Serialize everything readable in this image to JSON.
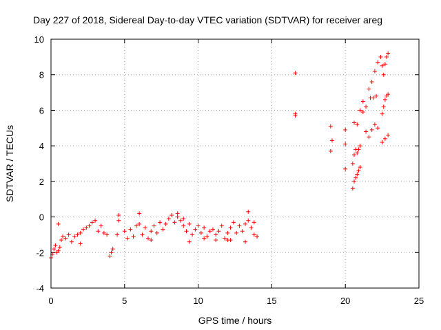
{
  "chart_data": {
    "type": "scatter",
    "title": "Day 227 of 2018, Sidereal Day-to-day VTEC variation (SDTVAR) for receiver areg",
    "xlabel": "GPS time / hours",
    "ylabel": "SDTVAR / TECUs",
    "xlim": [
      0,
      25
    ],
    "ylim": [
      -4,
      10
    ],
    "xticks": [
      0,
      5,
      10,
      15,
      20,
      25
    ],
    "yticks": [
      -4,
      -2,
      0,
      2,
      4,
      6,
      8,
      10
    ],
    "grid": true,
    "marker": "+",
    "color": "#ff0000",
    "series": [
      {
        "name": "SDTVAR",
        "x": [
          0.0,
          0.1,
          0.2,
          0.3,
          0.4,
          0.5,
          0.6,
          0.7,
          0.8,
          1.0,
          1.2,
          1.4,
          1.6,
          1.8,
          2.0,
          2.2,
          2.4,
          2.6,
          2.8,
          3.0,
          3.2,
          3.4,
          3.6,
          3.8,
          4.0,
          4.1,
          4.2,
          4.5,
          4.6,
          5.0,
          5.2,
          5.4,
          5.6,
          5.8,
          6.0,
          6.2,
          6.4,
          6.6,
          6.8,
          7.0,
          7.2,
          7.4,
          7.6,
          7.8,
          8.0,
          8.2,
          8.4,
          8.6,
          8.8,
          9.0,
          9.2,
          9.4,
          9.6,
          9.8,
          10.0,
          10.2,
          10.4,
          10.6,
          10.8,
          11.0,
          11.2,
          11.4,
          11.6,
          11.8,
          12.0,
          12.2,
          12.4,
          12.6,
          12.8,
          13.0,
          13.2,
          13.4,
          13.6,
          13.8,
          14.0,
          0.5,
          4.6,
          6.0,
          8.6,
          9.0,
          12.0,
          13.4,
          13.8,
          2.0,
          6.8,
          9.4,
          10.4,
          11.2,
          12.2,
          13.2,
          16.6,
          16.6,
          16.6,
          19.0,
          19.1,
          19.0,
          20.0,
          20.0,
          20.0,
          20.5,
          20.6,
          20.7,
          20.8,
          20.9,
          21.0,
          20.5,
          20.6,
          20.7,
          20.8,
          20.9,
          21.0,
          20.6,
          20.8,
          21.0,
          21.2,
          21.4,
          21.2,
          21.4,
          21.6,
          21.8,
          22.0,
          22.2,
          21.6,
          21.8,
          22.0,
          22.2,
          22.4,
          22.5,
          22.6,
          22.7,
          22.8,
          22.9,
          22.5,
          22.6,
          22.7,
          22.8,
          22.9,
          22.5,
          22.7,
          22.9,
          21.7,
          21.9,
          22.1
        ],
        "y": [
          -2.3,
          -2.1,
          -1.8,
          -1.6,
          -2.0,
          -1.9,
          -1.7,
          -1.3,
          -1.1,
          -1.2,
          -1.0,
          -1.4,
          -1.1,
          -1.0,
          -0.9,
          -0.7,
          -0.6,
          -0.5,
          -0.3,
          -0.2,
          -0.8,
          -0.5,
          -0.9,
          -1.0,
          -2.2,
          -2.0,
          -1.8,
          -1.0,
          -0.2,
          -0.8,
          -1.2,
          -0.7,
          -1.1,
          -0.5,
          -0.4,
          -1.0,
          -0.6,
          -1.2,
          -0.8,
          -0.5,
          -0.9,
          -0.3,
          -0.7,
          -0.4,
          -0.1,
          0.1,
          -0.3,
          0.0,
          -0.2,
          -0.5,
          -0.8,
          -0.4,
          -1.0,
          -0.7,
          -0.5,
          -0.9,
          -0.6,
          -1.1,
          -0.8,
          -0.7,
          -1.0,
          -0.8,
          -0.5,
          -1.2,
          -0.9,
          -0.6,
          -0.3,
          -0.9,
          -0.5,
          -0.8,
          -0.4,
          -0.2,
          -0.6,
          -1.0,
          -1.1,
          -0.4,
          0.1,
          0.2,
          0.2,
          -0.1,
          -1.3,
          0.3,
          -0.3,
          -1.5,
          -1.3,
          -1.4,
          -1.2,
          -1.3,
          -1.3,
          -1.4,
          8.1,
          5.8,
          5.7,
          5.1,
          4.3,
          3.7,
          4.9,
          4.1,
          2.7,
          1.6,
          2.0,
          2.2,
          2.4,
          2.6,
          2.8,
          3.0,
          3.5,
          3.8,
          3.6,
          3.8,
          4.0,
          5.3,
          5.2,
          6.0,
          6.5,
          6.2,
          5.9,
          4.8,
          4.5,
          4.9,
          5.2,
          5.0,
          7.2,
          7.6,
          8.2,
          8.7,
          9.0,
          8.5,
          8.0,
          8.6,
          9.0,
          9.2,
          5.8,
          6.2,
          6.6,
          6.8,
          6.9,
          4.2,
          4.4,
          4.6,
          6.7,
          6.7,
          6.8
        ]
      }
    ]
  }
}
